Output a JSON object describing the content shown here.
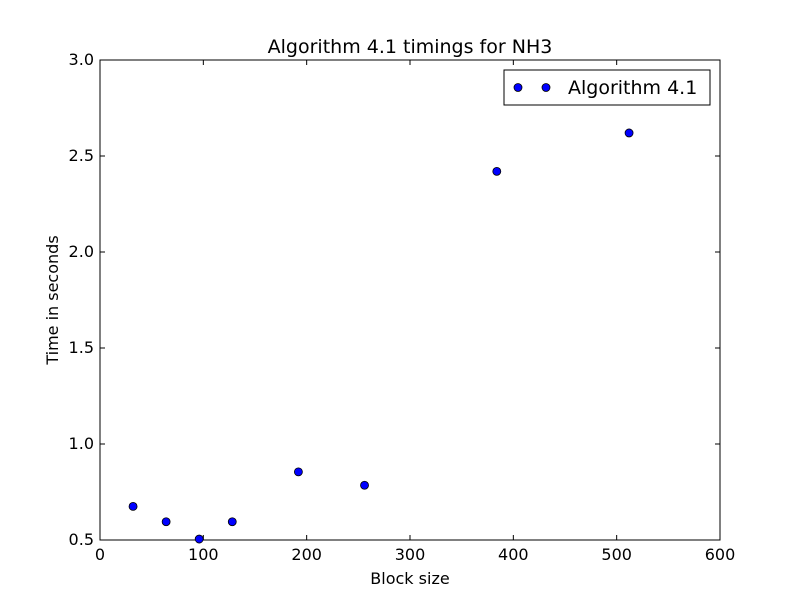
{
  "chart_data": {
    "type": "scatter",
    "title": "Algorithm 4.1 timings for NH3",
    "xlabel": "Block size",
    "ylabel": "Time in seconds",
    "xlim": [
      0,
      600
    ],
    "ylim": [
      0.5,
      3.0
    ],
    "xticks": [
      0,
      100,
      200,
      300,
      400,
      500,
      600
    ],
    "yticks": [
      0.5,
      1.0,
      1.5,
      2.0,
      2.5,
      3.0
    ],
    "xtick_labels": [
      "0",
      "100",
      "200",
      "300",
      "400",
      "500",
      "600"
    ],
    "ytick_labels": [
      "0.5",
      "1.0",
      "1.5",
      "2.0",
      "2.5",
      "3.0"
    ],
    "grid": false,
    "legend_position": "top-right",
    "series": [
      {
        "name": "Algorithm 4.1",
        "color": "#0000ff",
        "marker": "circle",
        "x": [
          32,
          64,
          96,
          128,
          192,
          256,
          384,
          512
        ],
        "y": [
          0.675,
          0.595,
          0.505,
          0.595,
          0.855,
          0.785,
          2.42,
          2.62
        ]
      }
    ]
  }
}
